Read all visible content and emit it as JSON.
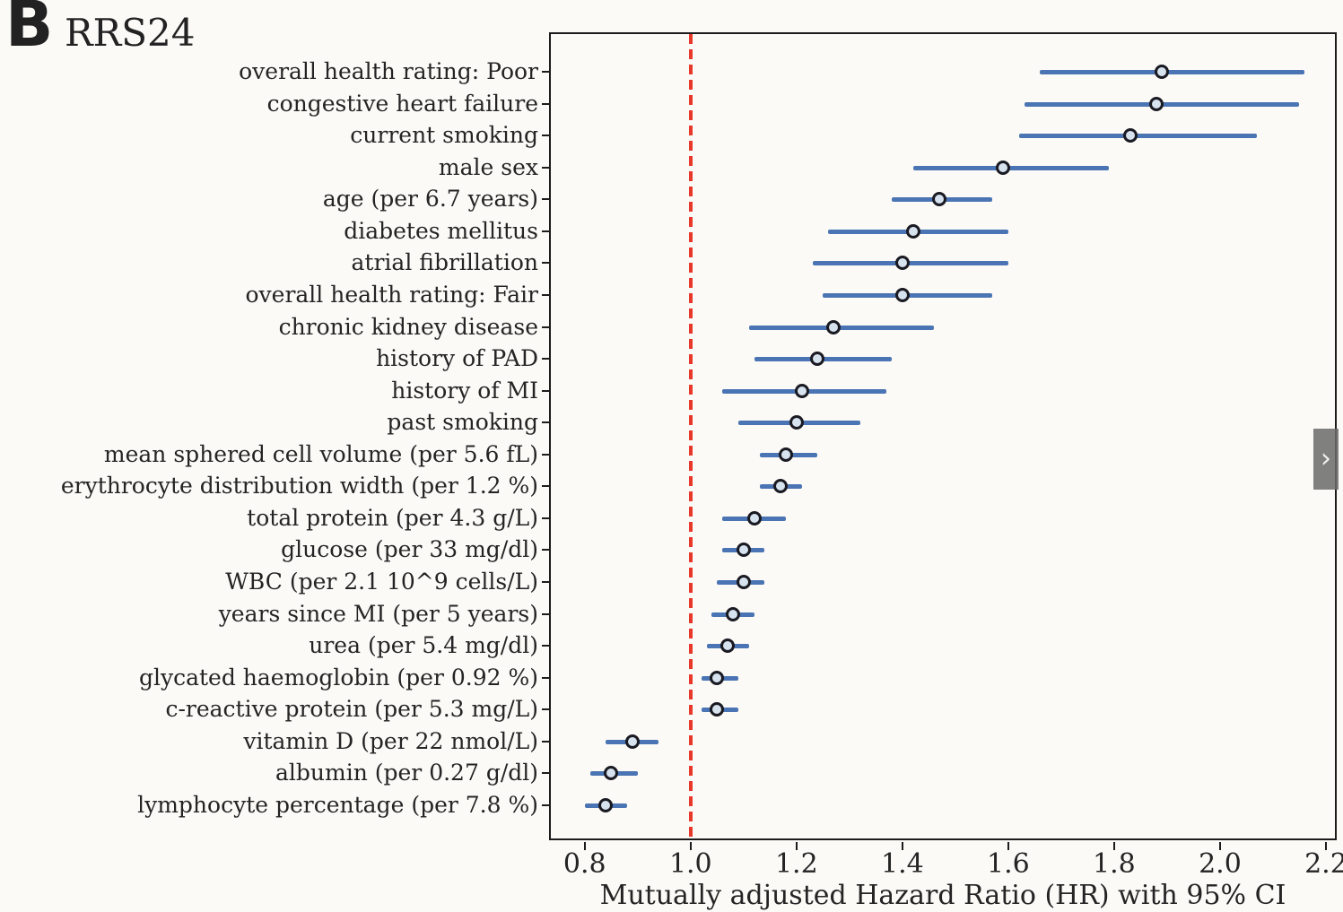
{
  "panel": {
    "label": "B",
    "title": "RRS24"
  },
  "carousel": {
    "next_arrow": "›"
  },
  "chart_data": {
    "type": "scatter",
    "subtype": "forest-plot",
    "title": "RRS24",
    "xlabel": "Mutually adjusted Hazard Ratio (HR) with 95% CI",
    "ylabel": "",
    "x_ticks": [
      0.8,
      1.0,
      1.2,
      1.4,
      1.6,
      1.8,
      2.0,
      2.2
    ],
    "xlim": [
      0.736,
      2.217
    ],
    "grid": false,
    "legend": "none",
    "reference_line_x": 1.0,
    "colors": {
      "ci_line": "#4a74b3",
      "marker_fill": "#d7e2ef",
      "marker_edge": "#1a1a22",
      "reference_line": "#e8382a",
      "axis": "#1c1c1c"
    },
    "points": [
      {
        "label": "overall health rating: Poor",
        "hr": 1.89,
        "ci_low": 1.66,
        "ci_high": 2.16
      },
      {
        "label": "congestive heart failure",
        "hr": 1.88,
        "ci_low": 1.63,
        "ci_high": 2.15
      },
      {
        "label": "current smoking",
        "hr": 1.83,
        "ci_low": 1.62,
        "ci_high": 2.07
      },
      {
        "label": "male sex",
        "hr": 1.59,
        "ci_low": 1.42,
        "ci_high": 1.79
      },
      {
        "label": "age (per 6.7 years)",
        "hr": 1.47,
        "ci_low": 1.38,
        "ci_high": 1.57
      },
      {
        "label": "diabetes mellitus",
        "hr": 1.42,
        "ci_low": 1.26,
        "ci_high": 1.6
      },
      {
        "label": "atrial fibrillation",
        "hr": 1.4,
        "ci_low": 1.23,
        "ci_high": 1.6
      },
      {
        "label": "overall health rating: Fair",
        "hr": 1.4,
        "ci_low": 1.25,
        "ci_high": 1.57
      },
      {
        "label": "chronic kidney disease",
        "hr": 1.27,
        "ci_low": 1.11,
        "ci_high": 1.46
      },
      {
        "label": "history of PAD",
        "hr": 1.24,
        "ci_low": 1.12,
        "ci_high": 1.38
      },
      {
        "label": "history of MI",
        "hr": 1.21,
        "ci_low": 1.06,
        "ci_high": 1.37
      },
      {
        "label": "past smoking",
        "hr": 1.2,
        "ci_low": 1.09,
        "ci_high": 1.32
      },
      {
        "label": "mean sphered cell volume (per 5.6 fL)",
        "hr": 1.18,
        "ci_low": 1.13,
        "ci_high": 1.24
      },
      {
        "label": "erythrocyte distribution width (per 1.2 %)",
        "hr": 1.17,
        "ci_low": 1.13,
        "ci_high": 1.21
      },
      {
        "label": "total protein (per 4.3 g/L)",
        "hr": 1.12,
        "ci_low": 1.06,
        "ci_high": 1.18
      },
      {
        "label": "glucose (per 33 mg/dl)",
        "hr": 1.1,
        "ci_low": 1.06,
        "ci_high": 1.14
      },
      {
        "label": "WBC (per 2.1 10^9 cells/L)",
        "hr": 1.1,
        "ci_low": 1.05,
        "ci_high": 1.14
      },
      {
        "label": "years since MI (per 5 years)",
        "hr": 1.08,
        "ci_low": 1.04,
        "ci_high": 1.12
      },
      {
        "label": "urea (per 5.4 mg/dl)",
        "hr": 1.07,
        "ci_low": 1.03,
        "ci_high": 1.11
      },
      {
        "label": "glycated haemoglobin (per 0.92 %)",
        "hr": 1.05,
        "ci_low": 1.02,
        "ci_high": 1.09
      },
      {
        "label": "c-reactive protein (per 5.3 mg/L)",
        "hr": 1.05,
        "ci_low": 1.02,
        "ci_high": 1.09
      },
      {
        "label": "vitamin D (per 22 nmol/L)",
        "hr": 0.89,
        "ci_low": 0.84,
        "ci_high": 0.94
      },
      {
        "label": "albumin (per 0.27 g/dl)",
        "hr": 0.85,
        "ci_low": 0.81,
        "ci_high": 0.9
      },
      {
        "label": "lymphocyte percentage (per 7.8 %)",
        "hr": 0.84,
        "ci_low": 0.8,
        "ci_high": 0.88
      }
    ]
  }
}
